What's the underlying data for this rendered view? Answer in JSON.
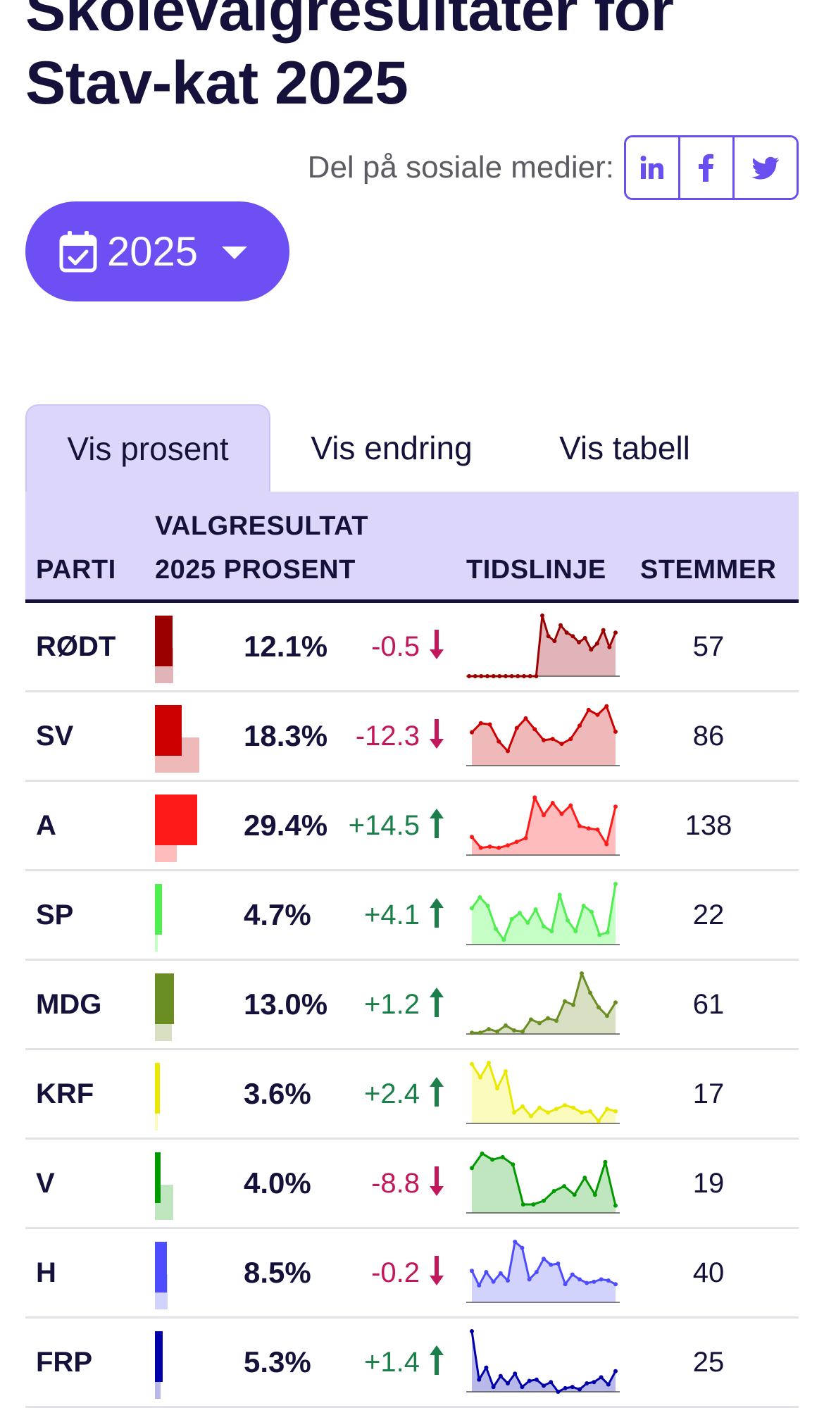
{
  "page": {
    "title": "Skolevalgresultater for Stav-kat 2025"
  },
  "share": {
    "label": "Del på sosiale medier:",
    "icons": [
      "linkedin-icon",
      "facebook-icon",
      "twitter-icon"
    ]
  },
  "year_selector": {
    "value": "2025",
    "icon": "calendar-check-icon"
  },
  "tabs": [
    {
      "label": "Vis prosent",
      "active": true
    },
    {
      "label": "Vis endring",
      "active": false
    },
    {
      "label": "Vis tabell",
      "active": false
    }
  ],
  "table": {
    "headers": {
      "party": "PARTI",
      "result_line1": "VALGRESULTAT",
      "result_line2": "2025 PROSENT",
      "timeline": "TIDSLINJE",
      "votes": "STEMMER"
    },
    "rows": [
      {
        "party": "RØDT",
        "pct": "12.1%",
        "change": "-0.5",
        "dir": "down",
        "votes": "57",
        "value": 12.1,
        "prev": 12.6,
        "color": "#9b0000",
        "fill": "#e0b4b8",
        "trend": [
          0,
          0,
          0,
          0,
          0,
          0,
          0,
          0,
          0,
          0,
          0,
          0,
          100,
          66,
          58,
          84,
          72,
          66,
          56,
          63,
          44,
          54,
          76,
          48,
          72
        ]
      },
      {
        "party": "SV",
        "pct": "18.3%",
        "change": "-12.3",
        "dir": "down",
        "votes": "86",
        "value": 18.3,
        "prev": 30.6,
        "color": "#cc0000",
        "fill": "#efb9b9",
        "trend": [
          55,
          70,
          68,
          40,
          24,
          62,
          78,
          60,
          42,
          44,
          36,
          44,
          66,
          92,
          84,
          98,
          56
        ]
      },
      {
        "party": "A",
        "pct": "29.4%",
        "change": "+14.5",
        "dir": "up",
        "votes": "138",
        "value": 29.4,
        "prev": 14.9,
        "color": "#ff1a1a",
        "fill": "#ffbcbc",
        "trend": [
          30,
          12,
          14,
          12,
          16,
          22,
          28,
          95,
          66,
          86,
          68,
          82,
          48,
          44,
          42,
          18,
          80
        ]
      },
      {
        "party": "SP",
        "pct": "4.7%",
        "change": "+4.1",
        "dir": "up",
        "votes": "22",
        "value": 4.7,
        "prev": 0.6,
        "color": "#50ee50",
        "fill": "#c6ffc6",
        "trend": [
          60,
          78,
          64,
          26,
          8,
          42,
          52,
          36,
          58,
          30,
          22,
          82,
          40,
          22,
          64,
          54,
          16,
          20,
          100
        ]
      },
      {
        "party": "MDG",
        "pct": "13.0%",
        "change": "+1.2",
        "dir": "up",
        "votes": "61",
        "value": 13.0,
        "prev": 11.8,
        "color": "#6b8e23",
        "fill": "#d9dfc3",
        "trend": [
          2,
          2,
          8,
          4,
          14,
          6,
          4,
          24,
          18,
          26,
          22,
          54,
          48,
          100,
          68,
          44,
          30,
          52
        ]
      },
      {
        "party": "KRF",
        "pct": "3.6%",
        "change": "+2.4",
        "dir": "up",
        "votes": "17",
        "value": 3.6,
        "prev": 1.2,
        "color": "#e9e900",
        "fill": "#fbfbbd",
        "trend": [
          98,
          76,
          100,
          58,
          86,
          18,
          28,
          12,
          26,
          18,
          24,
          30,
          26,
          18,
          20,
          4,
          24,
          20
        ]
      },
      {
        "party": "V",
        "pct": "4.0%",
        "change": "-8.8",
        "dir": "down",
        "votes": "19",
        "value": 4.0,
        "prev": 12.8,
        "color": "#009900",
        "fill": "#bfe6bf",
        "trend": [
          74,
          98,
          88,
          92,
          80,
          14,
          14,
          20,
          36,
          44,
          30,
          58,
          30,
          84,
          12
        ]
      },
      {
        "party": "H",
        "pct": "8.5%",
        "change": "-0.2",
        "dir": "down",
        "votes": "40",
        "value": 8.5,
        "prev": 8.7,
        "color": "#4d4dff",
        "fill": "#d2d3fc",
        "trend": [
          52,
          28,
          50,
          34,
          48,
          36,
          100,
          90,
          38,
          50,
          72,
          62,
          64,
          30,
          46,
          38,
          32,
          34,
          38,
          36,
          30
        ]
      },
      {
        "party": "FRP",
        "pct": "5.3%",
        "change": "+1.4",
        "dir": "up",
        "votes": "25",
        "value": 5.3,
        "prev": 3.9,
        "color": "#0000aa",
        "fill": "#b9b9e9",
        "trend": [
          100,
          20,
          40,
          8,
          26,
          14,
          30,
          8,
          18,
          20,
          10,
          16,
          0,
          6,
          8,
          4,
          14,
          16,
          24,
          12,
          34
        ]
      }
    ]
  }
}
